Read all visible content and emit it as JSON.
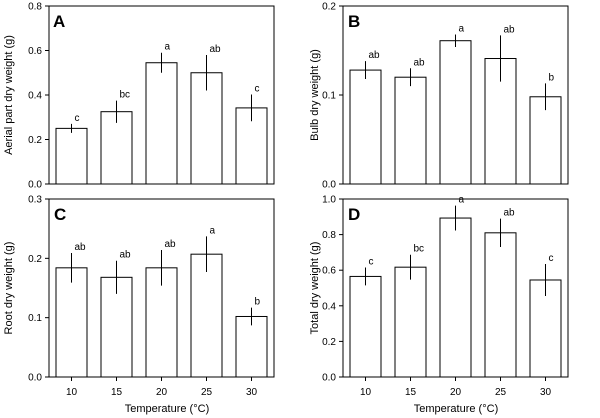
{
  "chart_data": [
    {
      "type": "bar",
      "panel": "A",
      "ylabel": "Aerial part dry weight (g)",
      "xlabel": "",
      "ylim": [
        0,
        0.8
      ],
      "yticks": [
        "0.0",
        "0.2",
        "0.4",
        "0.6",
        "0.8"
      ],
      "categories": [
        "10",
        "15",
        "20",
        "25",
        "30"
      ],
      "values": [
        0.25,
        0.325,
        0.545,
        0.5,
        0.342
      ],
      "errors": [
        0.02,
        0.05,
        0.045,
        0.08,
        0.06
      ],
      "labels": [
        "c",
        "bc",
        "a",
        "ab",
        "c"
      ]
    },
    {
      "type": "bar",
      "panel": "B",
      "ylabel": "Bulb dry weight (g)",
      "xlabel": "",
      "ylim": [
        0,
        0.2
      ],
      "yticks": [
        "0.0",
        "0.1",
        "0.2"
      ],
      "categories": [
        "10",
        "15",
        "20",
        "25",
        "30"
      ],
      "values": [
        0.128,
        0.12,
        0.161,
        0.141,
        0.098
      ],
      "errors": [
        0.01,
        0.01,
        0.007,
        0.026,
        0.015
      ],
      "labels": [
        "ab",
        "ab",
        "a",
        "ab",
        "b"
      ]
    },
    {
      "type": "bar",
      "panel": "C",
      "ylabel": "Root dry weight (g)",
      "xlabel": "Temperature (°C)",
      "ylim": [
        0,
        0.3
      ],
      "yticks": [
        "0.0",
        "0.1",
        "0.2",
        "0.3"
      ],
      "categories": [
        "10",
        "15",
        "20",
        "25",
        "30"
      ],
      "values": [
        0.184,
        0.168,
        0.184,
        0.207,
        0.102
      ],
      "errors": [
        0.025,
        0.028,
        0.03,
        0.03,
        0.015
      ],
      "labels": [
        "ab",
        "ab",
        "ab",
        "a",
        "b"
      ]
    },
    {
      "type": "bar",
      "panel": "D",
      "ylabel": "Total dry weight (g)",
      "xlabel": "Temperature (°C)",
      "ylim": [
        0,
        1.0
      ],
      "yticks": [
        "0.0",
        "0.2",
        "0.4",
        "0.6",
        "0.8",
        "1.0"
      ],
      "categories": [
        "10",
        "15",
        "20",
        "25",
        "30"
      ],
      "values": [
        0.565,
        0.617,
        0.893,
        0.81,
        0.545
      ],
      "errors": [
        0.05,
        0.07,
        0.07,
        0.08,
        0.09
      ],
      "labels": [
        "c",
        "bc",
        "a",
        "ab",
        "c"
      ]
    }
  ]
}
